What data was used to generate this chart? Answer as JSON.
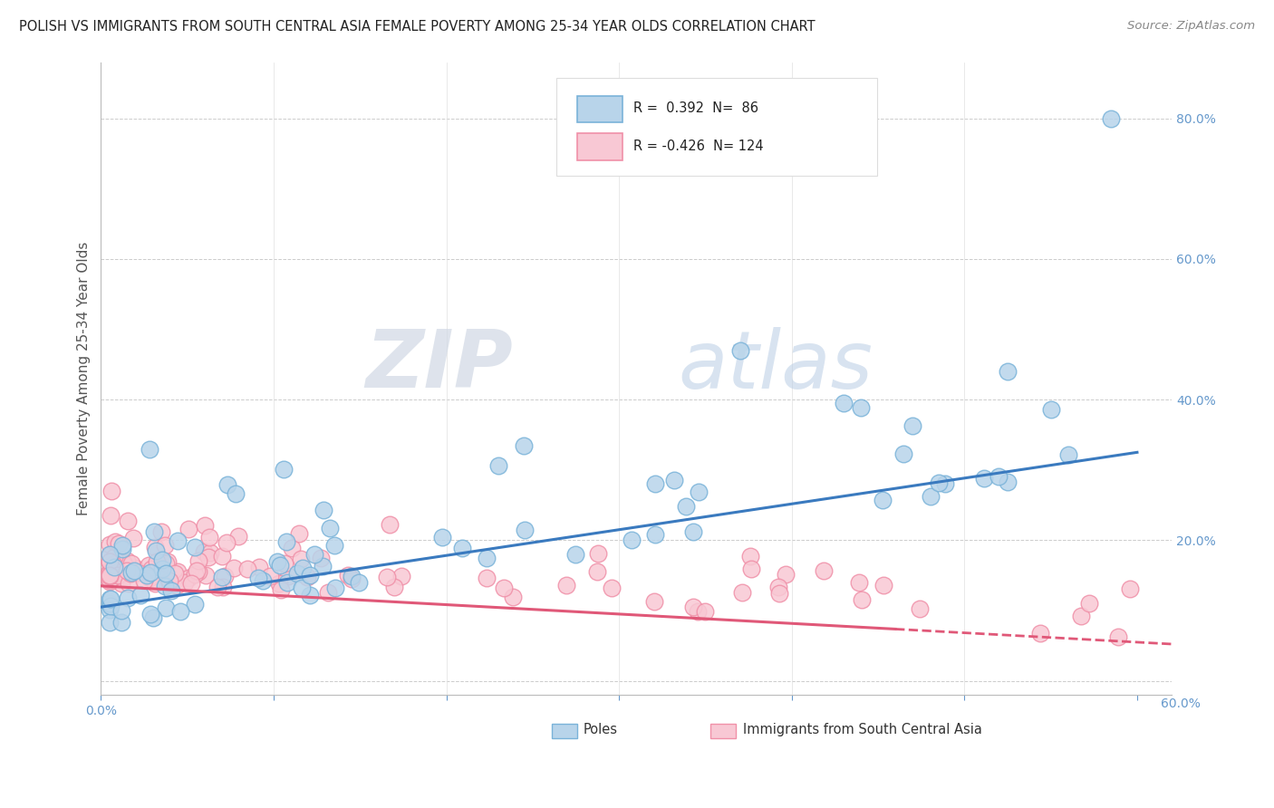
{
  "title": "POLISH VS IMMIGRANTS FROM SOUTH CENTRAL ASIA FEMALE POVERTY AMONG 25-34 YEAR OLDS CORRELATION CHART",
  "source": "Source: ZipAtlas.com",
  "ylabel": "Female Poverty Among 25-34 Year Olds",
  "xlim": [
    0.0,
    0.62
  ],
  "ylim": [
    -0.02,
    0.88
  ],
  "color_poles_edge": "#7ab3d9",
  "color_poles_fill": "#b8d4ea",
  "color_immigrants_edge": "#f090a8",
  "color_immigrants_fill": "#f8c8d4",
  "color_trend_poles": "#3a7abf",
  "color_trend_immigrants": "#e05878",
  "legend_r_poles": "0.392",
  "legend_n_poles": "86",
  "legend_r_immigrants": "-0.426",
  "legend_n_immigrants": "124",
  "legend_label_poles": "Poles",
  "legend_label_immigrants": "Immigrants from South Central Asia",
  "watermark_zip": "ZIP",
  "watermark_atlas": "atlas",
  "trend_poles_x0": 0.0,
  "trend_poles_y0": 0.105,
  "trend_poles_x1": 0.6,
  "trend_poles_y1": 0.325,
  "trend_imm_x0": 0.0,
  "trend_imm_y0": 0.135,
  "trend_imm_x1": 0.6,
  "trend_imm_y1": 0.055,
  "trend_imm_dash_x0": 0.45,
  "trend_imm_dash_x1": 0.62
}
